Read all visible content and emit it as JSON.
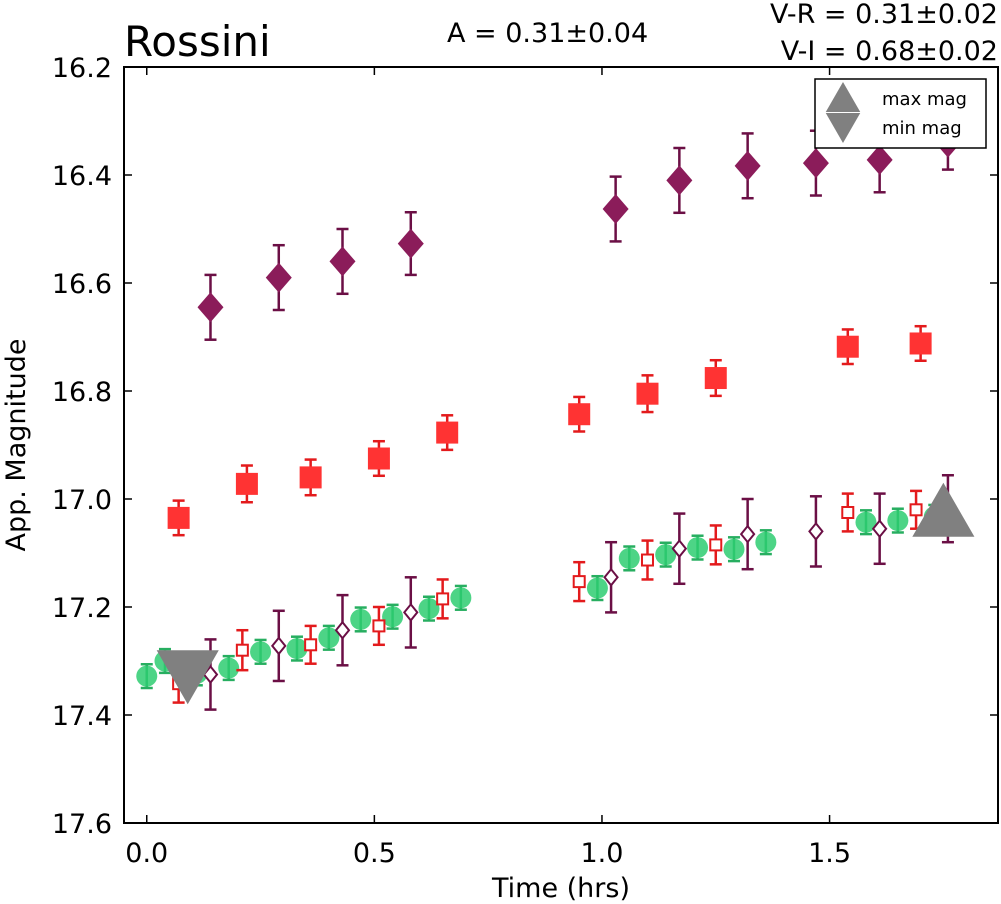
{
  "chart_data": {
    "type": "scatter",
    "title": "Rossini",
    "annotations": {
      "amplitude": "A  = 0.31±0.04",
      "v_r": "V-R = 0.31±0.02",
      "v_i": "V-I  = 0.68±0.02"
    },
    "xlabel": "Time (hrs)",
    "ylabel": "App. Magnitude",
    "xlim": [
      -0.05,
      1.87
    ],
    "ylim": [
      17.6,
      16.2
    ],
    "y_inverted": true,
    "xticks": [
      "0.0",
      "0.5",
      "1.0",
      "1.5"
    ],
    "yticks": [
      "16.2",
      "16.4",
      "16.6",
      "16.8",
      "17.0",
      "17.2",
      "17.4",
      "17.6"
    ],
    "legend": {
      "position": "top-right",
      "entries": [
        {
          "label": "max mag",
          "marker": "triangle-up",
          "color": "#808080"
        },
        {
          "label": "min mag",
          "marker": "triangle-down",
          "color": "#808080"
        }
      ]
    },
    "series": [
      {
        "marker": "diamond-filled",
        "color": "#8b1c5a",
        "errcolor": "#6b0f45",
        "points": [
          {
            "x": 0.14,
            "y": 16.645,
            "err": 0.06
          },
          {
            "x": 0.29,
            "y": 16.59,
            "err": 0.06
          },
          {
            "x": 0.43,
            "y": 16.56,
            "err": 0.06
          },
          {
            "x": 0.58,
            "y": 16.527,
            "err": 0.058
          },
          {
            "x": 1.03,
            "y": 16.463,
            "err": 0.06
          },
          {
            "x": 1.17,
            "y": 16.41,
            "err": 0.06
          },
          {
            "x": 1.32,
            "y": 16.383,
            "err": 0.06
          },
          {
            "x": 1.47,
            "y": 16.378,
            "err": 0.06
          },
          {
            "x": 1.61,
            "y": 16.372,
            "err": 0.06
          },
          {
            "x": 1.76,
            "y": 16.34,
            "err": 0.05
          }
        ]
      },
      {
        "marker": "square-filled",
        "color": "#ff3333",
        "errcolor": "#e31a1c",
        "points": [
          {
            "x": 0.07,
            "y": 17.035,
            "err": 0.032
          },
          {
            "x": 0.22,
            "y": 16.972,
            "err": 0.034
          },
          {
            "x": 0.36,
            "y": 16.96,
            "err": 0.033
          },
          {
            "x": 0.51,
            "y": 16.925,
            "err": 0.032
          },
          {
            "x": 0.66,
            "y": 16.877,
            "err": 0.032
          },
          {
            "x": 0.95,
            "y": 16.843,
            "err": 0.032
          },
          {
            "x": 1.1,
            "y": 16.805,
            "err": 0.034
          },
          {
            "x": 1.25,
            "y": 16.776,
            "err": 0.033
          },
          {
            "x": 1.54,
            "y": 16.718,
            "err": 0.032
          },
          {
            "x": 1.7,
            "y": 16.712,
            "err": 0.032
          }
        ]
      },
      {
        "marker": "circle-filled",
        "color": "#2ecc71",
        "errcolor": "#27ae60",
        "points": [
          {
            "x": 0.0,
            "y": 17.328,
            "err": 0.022
          },
          {
            "x": 0.04,
            "y": 17.3,
            "err": 0.022
          },
          {
            "x": 0.11,
            "y": 17.323,
            "err": 0.022
          },
          {
            "x": 0.18,
            "y": 17.313,
            "err": 0.022
          },
          {
            "x": 0.25,
            "y": 17.283,
            "err": 0.022
          },
          {
            "x": 0.33,
            "y": 17.277,
            "err": 0.022
          },
          {
            "x": 0.4,
            "y": 17.257,
            "err": 0.022
          },
          {
            "x": 0.47,
            "y": 17.223,
            "err": 0.022
          },
          {
            "x": 0.54,
            "y": 17.218,
            "err": 0.022
          },
          {
            "x": 0.62,
            "y": 17.203,
            "err": 0.022
          },
          {
            "x": 0.69,
            "y": 17.183,
            "err": 0.022
          },
          {
            "x": 0.99,
            "y": 17.165,
            "err": 0.022
          },
          {
            "x": 1.06,
            "y": 17.11,
            "err": 0.022
          },
          {
            "x": 1.14,
            "y": 17.103,
            "err": 0.022
          },
          {
            "x": 1.21,
            "y": 17.09,
            "err": 0.022
          },
          {
            "x": 1.29,
            "y": 17.093,
            "err": 0.022
          },
          {
            "x": 1.36,
            "y": 17.08,
            "err": 0.022
          },
          {
            "x": 1.58,
            "y": 17.043,
            "err": 0.022
          },
          {
            "x": 1.65,
            "y": 17.04,
            "err": 0.022
          },
          {
            "x": 1.73,
            "y": 17.033,
            "err": 0.022
          }
        ]
      },
      {
        "marker": "square-open",
        "color": "#e31a1c",
        "errcolor": "#e31a1c",
        "points": [
          {
            "x": 0.07,
            "y": 17.342,
            "err": 0.035
          },
          {
            "x": 0.21,
            "y": 17.28,
            "err": 0.037
          },
          {
            "x": 0.36,
            "y": 17.27,
            "err": 0.035
          },
          {
            "x": 0.51,
            "y": 17.235,
            "err": 0.035
          },
          {
            "x": 0.65,
            "y": 17.185,
            "err": 0.036
          },
          {
            "x": 0.95,
            "y": 17.153,
            "err": 0.036
          },
          {
            "x": 1.1,
            "y": 17.113,
            "err": 0.036
          },
          {
            "x": 1.25,
            "y": 17.085,
            "err": 0.036
          },
          {
            "x": 1.54,
            "y": 17.025,
            "err": 0.035
          },
          {
            "x": 1.69,
            "y": 17.02,
            "err": 0.035
          }
        ]
      },
      {
        "marker": "diamond-open",
        "color": "#6b0f45",
        "errcolor": "#6b0f45",
        "points": [
          {
            "x": 0.14,
            "y": 17.325,
            "err": 0.065
          },
          {
            "x": 0.29,
            "y": 17.272,
            "err": 0.065
          },
          {
            "x": 0.43,
            "y": 17.243,
            "err": 0.065
          },
          {
            "x": 0.58,
            "y": 17.21,
            "err": 0.065
          },
          {
            "x": 1.02,
            "y": 17.145,
            "err": 0.065
          },
          {
            "x": 1.17,
            "y": 17.092,
            "err": 0.065
          },
          {
            "x": 1.32,
            "y": 17.065,
            "err": 0.065
          },
          {
            "x": 1.47,
            "y": 17.06,
            "err": 0.065
          },
          {
            "x": 1.61,
            "y": 17.055,
            "err": 0.065
          },
          {
            "x": 1.76,
            "y": 17.018,
            "err": 0.062
          }
        ]
      }
    ],
    "min_mag_marker": {
      "x": 0.09,
      "y": 17.32,
      "shape": "triangle-down",
      "color": "#808080"
    },
    "max_mag_marker": {
      "x": 1.75,
      "y": 17.03,
      "shape": "triangle-up",
      "color": "#808080"
    }
  }
}
